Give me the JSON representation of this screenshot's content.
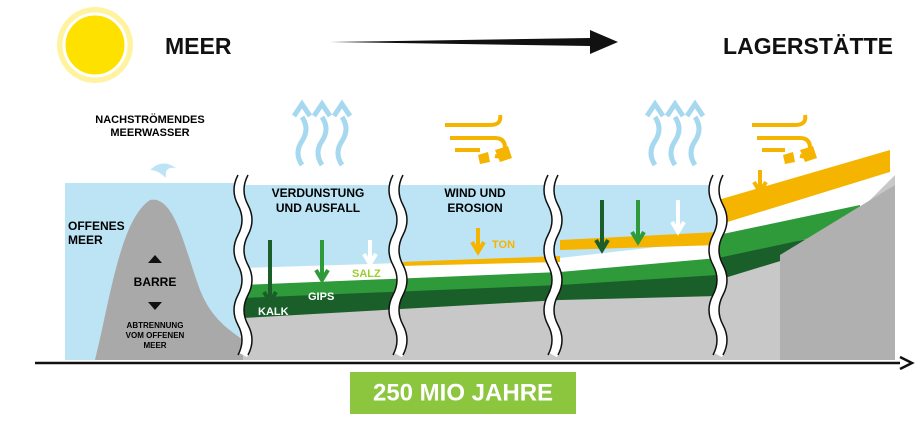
{
  "header": {
    "left": "MEER",
    "right": "LAGERSTÄTTE"
  },
  "labels": {
    "nachstroemendes": [
      "NACHSTRÖMENDES",
      "MEERWASSER"
    ],
    "offenes_meer": [
      "OFFENES",
      "MEER"
    ],
    "barre": "BARRE",
    "abtrennung": [
      "ABTRENNUNG",
      "VOM OFFENEN",
      "MEER"
    ],
    "verdunstung": [
      "VERDUNSTUNG",
      "UND AUSFALL"
    ],
    "kalk": "KALK",
    "gips": "GIPS",
    "salz": "SALZ",
    "wind": [
      "WIND UND",
      "EROSION"
    ],
    "ton": "TON"
  },
  "timeline": "250 MIO JAHRE"
}
